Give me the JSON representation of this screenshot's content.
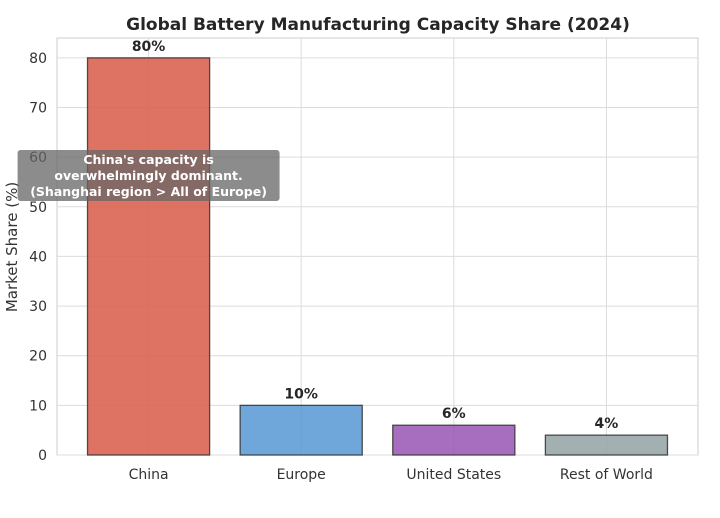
{
  "chart_data": {
    "type": "bar",
    "title": "Global Battery Manufacturing Capacity Share (2024)",
    "xlabel": "",
    "ylabel": "Market Share (%)",
    "categories": [
      "China",
      "Europe",
      "United States",
      "Rest of World"
    ],
    "values": [
      80,
      10,
      6,
      4
    ],
    "data_labels": [
      "80%",
      "10%",
      "6%",
      "4%"
    ],
    "colors": [
      "#d9604f",
      "#5b9bd5",
      "#9b59b6",
      "#95a5a6"
    ],
    "ylim": [
      0,
      84
    ],
    "yticks": [
      0,
      10,
      20,
      30,
      40,
      50,
      60,
      70,
      80
    ],
    "grid": true,
    "legend": "none",
    "annotation": {
      "lines": [
        "China's capacity is",
        "overwhelmingly dominant.",
        "(Shanghai region > All of Europe)"
      ],
      "category": "China",
      "y": 57
    }
  }
}
